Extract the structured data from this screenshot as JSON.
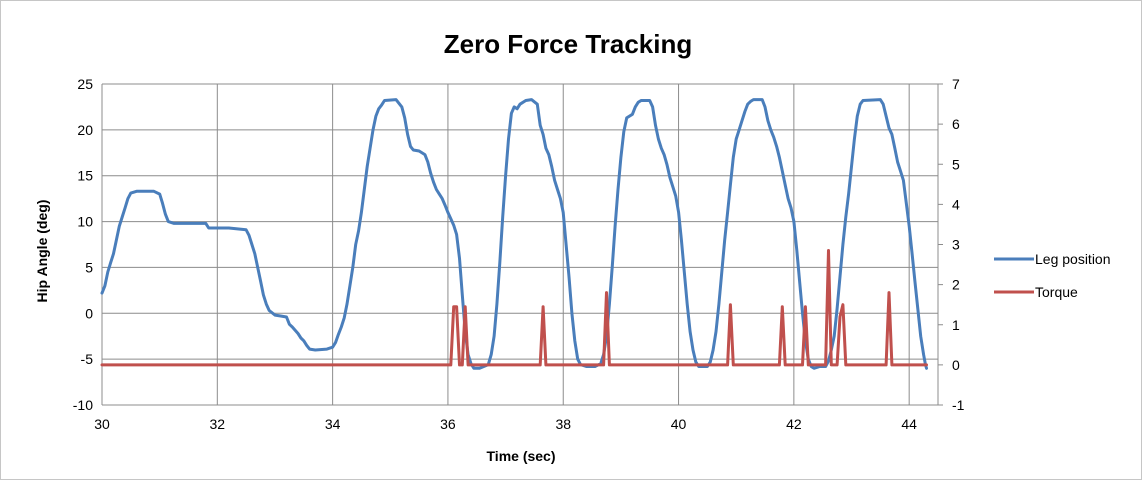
{
  "chart_data": {
    "type": "line",
    "title": "Zero Force Tracking",
    "xlabel": "Time (sec)",
    "ylabel": "Hip Angle (deg)",
    "xlim": [
      30,
      44.5
    ],
    "ylim": [
      -10,
      25
    ],
    "y2lim": [
      -1,
      7
    ],
    "x_ticks": [
      30,
      32,
      34,
      36,
      38,
      40,
      42,
      44
    ],
    "y_ticks": [
      -10,
      -5,
      0,
      5,
      10,
      15,
      20,
      25
    ],
    "y2_ticks": [
      -1,
      0,
      1,
      2,
      3,
      4,
      5,
      6,
      7
    ],
    "grid": true,
    "legend_position": "right",
    "series": [
      {
        "name": "Leg position",
        "axis": "left",
        "color": "#4a7ebb",
        "points": [
          [
            30.0,
            2.2
          ],
          [
            30.05,
            3.0
          ],
          [
            30.1,
            4.5
          ],
          [
            30.15,
            5.5
          ],
          [
            30.2,
            6.5
          ],
          [
            30.25,
            8.0
          ],
          [
            30.3,
            9.5
          ],
          [
            30.35,
            10.5
          ],
          [
            30.4,
            11.5
          ],
          [
            30.45,
            12.5
          ],
          [
            30.5,
            13.1
          ],
          [
            30.6,
            13.3
          ],
          [
            30.9,
            13.3
          ],
          [
            31.0,
            13.0
          ],
          [
            31.05,
            12.0
          ],
          [
            31.1,
            10.8
          ],
          [
            31.15,
            10.0
          ],
          [
            31.25,
            9.8
          ],
          [
            31.8,
            9.8
          ],
          [
            31.85,
            9.3
          ],
          [
            32.2,
            9.3
          ],
          [
            32.5,
            9.1
          ],
          [
            32.55,
            8.5
          ],
          [
            32.6,
            7.5
          ],
          [
            32.65,
            6.5
          ],
          [
            32.7,
            5.0
          ],
          [
            32.75,
            3.5
          ],
          [
            32.8,
            2.0
          ],
          [
            32.85,
            1.0
          ],
          [
            32.9,
            0.3
          ],
          [
            33.0,
            -0.2
          ],
          [
            33.1,
            -0.3
          ],
          [
            33.2,
            -0.4
          ],
          [
            33.25,
            -1.2
          ],
          [
            33.3,
            -1.5
          ],
          [
            33.4,
            -2.2
          ],
          [
            33.45,
            -2.7
          ],
          [
            33.5,
            -3.0
          ],
          [
            33.55,
            -3.5
          ],
          [
            33.6,
            -3.9
          ],
          [
            33.7,
            -4.0
          ],
          [
            33.9,
            -3.9
          ],
          [
            34.0,
            -3.7
          ],
          [
            34.05,
            -3.2
          ],
          [
            34.1,
            -2.3
          ],
          [
            34.15,
            -1.5
          ],
          [
            34.2,
            -0.5
          ],
          [
            34.25,
            1.0
          ],
          [
            34.3,
            3.0
          ],
          [
            34.35,
            5.0
          ],
          [
            34.4,
            7.5
          ],
          [
            34.45,
            9.0
          ],
          [
            34.5,
            11.0
          ],
          [
            34.55,
            13.5
          ],
          [
            34.6,
            16.0
          ],
          [
            34.65,
            18.0
          ],
          [
            34.7,
            20.0
          ],
          [
            34.75,
            21.5
          ],
          [
            34.8,
            22.3
          ],
          [
            34.85,
            22.7
          ],
          [
            34.9,
            23.2
          ],
          [
            35.1,
            23.3
          ],
          [
            35.2,
            22.5
          ],
          [
            35.25,
            21.3
          ],
          [
            35.3,
            19.5
          ],
          [
            35.35,
            18.2
          ],
          [
            35.4,
            17.8
          ],
          [
            35.5,
            17.7
          ],
          [
            35.6,
            17.3
          ],
          [
            35.65,
            16.5
          ],
          [
            35.7,
            15.3
          ],
          [
            35.75,
            14.3
          ],
          [
            35.8,
            13.5
          ],
          [
            35.85,
            13.0
          ],
          [
            35.9,
            12.5
          ],
          [
            35.95,
            11.8
          ],
          [
            36.0,
            11.0
          ],
          [
            36.05,
            10.3
          ],
          [
            36.1,
            9.6
          ],
          [
            36.15,
            8.6
          ],
          [
            36.2,
            6.0
          ],
          [
            36.25,
            2.0
          ],
          [
            36.3,
            -2.0
          ],
          [
            36.35,
            -4.5
          ],
          [
            36.4,
            -5.5
          ],
          [
            36.45,
            -6.0
          ],
          [
            36.55,
            -6.0
          ],
          [
            36.7,
            -5.6
          ],
          [
            36.75,
            -4.5
          ],
          [
            36.8,
            -2.5
          ],
          [
            36.85,
            1.0
          ],
          [
            36.9,
            5.5
          ],
          [
            36.95,
            10.5
          ],
          [
            37.0,
            15.0
          ],
          [
            37.05,
            19.0
          ],
          [
            37.1,
            21.8
          ],
          [
            37.15,
            22.5
          ],
          [
            37.2,
            22.3
          ],
          [
            37.25,
            22.8
          ],
          [
            37.35,
            23.2
          ],
          [
            37.45,
            23.3
          ],
          [
            37.55,
            22.8
          ],
          [
            37.6,
            20.5
          ],
          [
            37.65,
            19.5
          ],
          [
            37.7,
            18.0
          ],
          [
            37.75,
            17.3
          ],
          [
            37.8,
            16.0
          ],
          [
            37.85,
            14.5
          ],
          [
            37.9,
            13.5
          ],
          [
            37.95,
            12.5
          ],
          [
            38.0,
            11.0
          ],
          [
            38.05,
            7.5
          ],
          [
            38.1,
            4.0
          ],
          [
            38.15,
            0.0
          ],
          [
            38.2,
            -3.0
          ],
          [
            38.25,
            -5.0
          ],
          [
            38.3,
            -5.6
          ],
          [
            38.4,
            -5.8
          ],
          [
            38.55,
            -5.8
          ],
          [
            38.65,
            -5.5
          ],
          [
            38.7,
            -4.5
          ],
          [
            38.75,
            -2.5
          ],
          [
            38.8,
            1.0
          ],
          [
            38.85,
            5.0
          ],
          [
            38.9,
            9.5
          ],
          [
            38.95,
            13.5
          ],
          [
            39.0,
            17.0
          ],
          [
            39.05,
            19.8
          ],
          [
            39.1,
            21.3
          ],
          [
            39.15,
            21.5
          ],
          [
            39.2,
            21.7
          ],
          [
            39.25,
            22.5
          ],
          [
            39.3,
            23.0
          ],
          [
            39.35,
            23.2
          ],
          [
            39.5,
            23.2
          ],
          [
            39.55,
            22.5
          ],
          [
            39.6,
            20.5
          ],
          [
            39.65,
            19.0
          ],
          [
            39.7,
            18.0
          ],
          [
            39.75,
            17.3
          ],
          [
            39.8,
            16.2
          ],
          [
            39.85,
            14.8
          ],
          [
            39.9,
            13.8
          ],
          [
            39.95,
            12.8
          ],
          [
            40.0,
            11.0
          ],
          [
            40.05,
            8.0
          ],
          [
            40.1,
            4.5
          ],
          [
            40.15,
            1.0
          ],
          [
            40.2,
            -2.0
          ],
          [
            40.25,
            -4.0
          ],
          [
            40.3,
            -5.3
          ],
          [
            40.35,
            -5.8
          ],
          [
            40.5,
            -5.8
          ],
          [
            40.55,
            -5.3
          ],
          [
            40.6,
            -4.0
          ],
          [
            40.65,
            -2.0
          ],
          [
            40.7,
            1.0
          ],
          [
            40.75,
            4.5
          ],
          [
            40.8,
            8.0
          ],
          [
            40.85,
            11.0
          ],
          [
            40.9,
            14.0
          ],
          [
            40.95,
            17.0
          ],
          [
            41.0,
            19.0
          ],
          [
            41.05,
            20.0
          ],
          [
            41.1,
            21.0
          ],
          [
            41.15,
            22.0
          ],
          [
            41.2,
            22.8
          ],
          [
            41.25,
            23.1
          ],
          [
            41.3,
            23.3
          ],
          [
            41.45,
            23.3
          ],
          [
            41.5,
            22.5
          ],
          [
            41.55,
            21.0
          ],
          [
            41.6,
            20.0
          ],
          [
            41.65,
            19.2
          ],
          [
            41.7,
            18.2
          ],
          [
            41.75,
            17.0
          ],
          [
            41.8,
            15.5
          ],
          [
            41.85,
            14.0
          ],
          [
            41.9,
            12.5
          ],
          [
            41.95,
            11.5
          ],
          [
            42.0,
            10.0
          ],
          [
            42.05,
            7.0
          ],
          [
            42.1,
            3.5
          ],
          [
            42.15,
            0.0
          ],
          [
            42.2,
            -3.0
          ],
          [
            42.25,
            -5.0
          ],
          [
            42.3,
            -5.8
          ],
          [
            42.35,
            -6.0
          ],
          [
            42.45,
            -5.8
          ],
          [
            42.55,
            -5.8
          ],
          [
            42.6,
            -5.2
          ],
          [
            42.65,
            -4.0
          ],
          [
            42.7,
            -2.5
          ],
          [
            42.75,
            0.5
          ],
          [
            42.8,
            4.0
          ],
          [
            42.85,
            7.5
          ],
          [
            42.9,
            10.5
          ],
          [
            42.95,
            13.0
          ],
          [
            43.0,
            16.0
          ],
          [
            43.05,
            19.0
          ],
          [
            43.1,
            21.5
          ],
          [
            43.15,
            22.8
          ],
          [
            43.2,
            23.2
          ],
          [
            43.5,
            23.3
          ],
          [
            43.55,
            22.8
          ],
          [
            43.6,
            21.5
          ],
          [
            43.65,
            20.2
          ],
          [
            43.7,
            19.5
          ],
          [
            43.75,
            18.0
          ],
          [
            43.8,
            16.5
          ],
          [
            43.85,
            15.5
          ],
          [
            43.9,
            14.5
          ],
          [
            43.95,
            12.0
          ],
          [
            44.0,
            9.5
          ],
          [
            44.05,
            6.5
          ],
          [
            44.1,
            3.5
          ],
          [
            44.15,
            0.5
          ],
          [
            44.2,
            -2.5
          ],
          [
            44.25,
            -4.5
          ],
          [
            44.28,
            -5.5
          ],
          [
            44.3,
            -6.0
          ]
        ]
      },
      {
        "name": "Torque",
        "axis": "right",
        "color": "#c0504d",
        "points": [
          [
            30.0,
            0
          ],
          [
            36.05,
            0
          ],
          [
            36.1,
            1.45
          ],
          [
            36.15,
            1.45
          ],
          [
            36.2,
            0
          ],
          [
            36.25,
            0
          ],
          [
            36.3,
            1.45
          ],
          [
            36.35,
            0
          ],
          [
            37.6,
            0
          ],
          [
            37.65,
            1.45
          ],
          [
            37.7,
            0
          ],
          [
            38.7,
            0
          ],
          [
            38.75,
            1.8
          ],
          [
            38.8,
            0
          ],
          [
            40.85,
            0
          ],
          [
            40.9,
            1.5
          ],
          [
            40.95,
            0
          ],
          [
            41.75,
            0
          ],
          [
            41.8,
            1.45
          ],
          [
            41.85,
            0
          ],
          [
            42.15,
            0
          ],
          [
            42.2,
            1.45
          ],
          [
            42.25,
            0
          ],
          [
            42.55,
            0
          ],
          [
            42.6,
            2.85
          ],
          [
            42.65,
            0
          ],
          [
            42.75,
            0
          ],
          [
            42.8,
            1.2
          ],
          [
            42.85,
            1.5
          ],
          [
            42.9,
            0
          ],
          [
            43.6,
            0
          ],
          [
            43.65,
            1.8
          ],
          [
            43.7,
            0
          ],
          [
            44.3,
            0
          ]
        ]
      }
    ]
  }
}
